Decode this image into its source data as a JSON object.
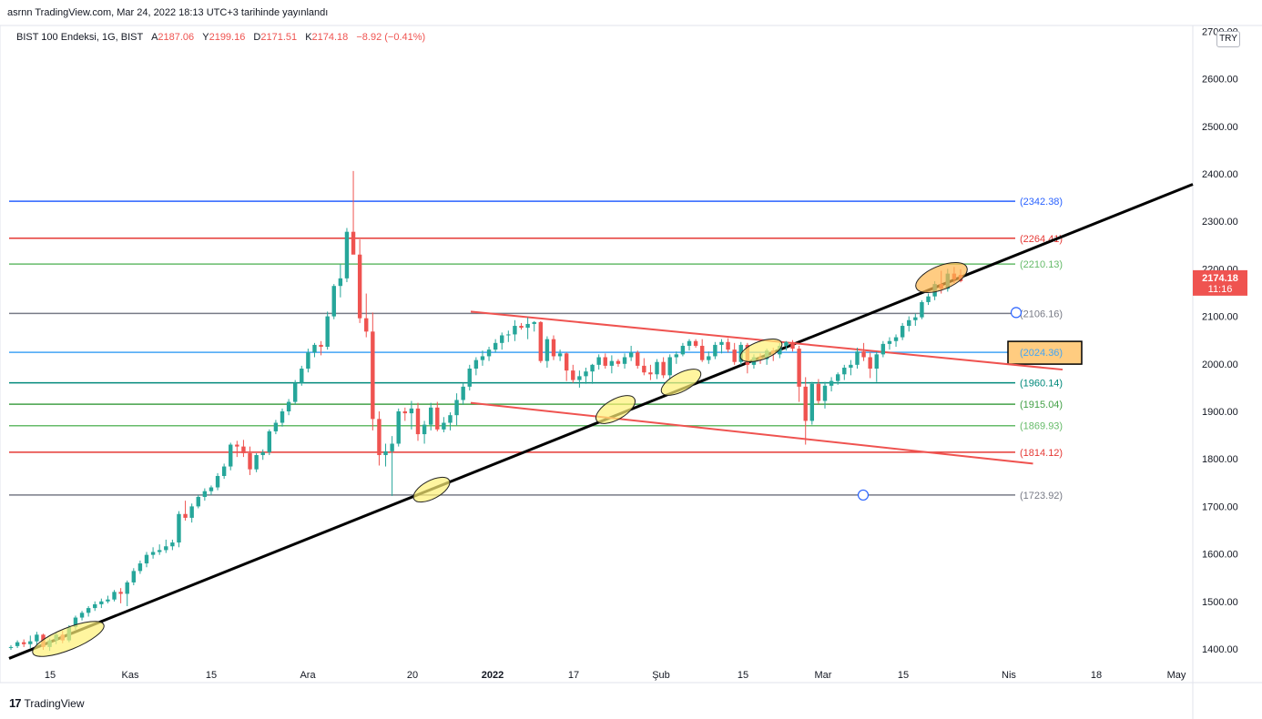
{
  "header": {
    "published": "asrnn TradingView.com, Mar 24, 2022 18:13 UTC+3 tarihinde yayınlandı",
    "symbol": "BIST 100 Endeksi, 1G, BIST",
    "o_label": "A",
    "o_value": "2187.06",
    "h_label": "Y",
    "h_value": "2199.16",
    "l_label": "D",
    "l_value": "2171.51",
    "c_label": "K",
    "c_value": "2174.18",
    "change": "−8.92 (−0.41%)"
  },
  "currency": "TRY",
  "brand": "TradingView",
  "price_tag": {
    "price": "2174.18",
    "time": "11:16",
    "color": "#ef5350"
  },
  "chart_data": {
    "type": "candlestick",
    "y_ticks": [
      "1400.00",
      "1500.00",
      "1600.00",
      "1700.00",
      "1800.00",
      "1900.00",
      "2000.00",
      "2100.00",
      "2200.00",
      "2300.00",
      "2400.00",
      "2500.00",
      "2600.00",
      "2700.00"
    ],
    "ylim": [
      1365,
      2710
    ],
    "x_ticks": [
      "15",
      "Kas",
      "15",
      "Ara",
      "20",
      "2022",
      "17",
      "Şub",
      "15",
      "Mar",
      "15",
      "Nis",
      "18",
      "May"
    ],
    "colors": {
      "up": "#26a69a",
      "down": "#ef5350"
    },
    "candles_ohlc": [
      [
        1402,
        1408,
        1398,
        1404
      ],
      [
        1406,
        1418,
        1402,
        1414
      ],
      [
        1414,
        1420,
        1404,
        1410
      ],
      [
        1410,
        1428,
        1402,
        1416
      ],
      [
        1416,
        1436,
        1408,
        1430
      ],
      [
        1430,
        1432,
        1398,
        1404
      ],
      [
        1404,
        1422,
        1396,
        1418
      ],
      [
        1418,
        1434,
        1410,
        1430
      ],
      [
        1430,
        1438,
        1412,
        1418
      ],
      [
        1418,
        1450,
        1414,
        1446
      ],
      [
        1446,
        1470,
        1440,
        1466
      ],
      [
        1466,
        1480,
        1460,
        1476
      ],
      [
        1476,
        1490,
        1468,
        1486
      ],
      [
        1486,
        1500,
        1480,
        1494
      ],
      [
        1494,
        1506,
        1486,
        1500
      ],
      [
        1500,
        1512,
        1496,
        1504
      ],
      [
        1504,
        1524,
        1500,
        1520
      ],
      [
        1520,
        1528,
        1496,
        1516
      ],
      [
        1516,
        1544,
        1490,
        1540
      ],
      [
        1540,
        1570,
        1534,
        1564
      ],
      [
        1564,
        1586,
        1558,
        1580
      ],
      [
        1580,
        1604,
        1572,
        1598
      ],
      [
        1598,
        1614,
        1590,
        1604
      ],
      [
        1604,
        1620,
        1598,
        1608
      ],
      [
        1608,
        1630,
        1602,
        1616
      ],
      [
        1616,
        1630,
        1608,
        1624
      ],
      [
        1624,
        1690,
        1614,
        1684
      ],
      [
        1684,
        1712,
        1670,
        1676
      ],
      [
        1676,
        1706,
        1666,
        1700
      ],
      [
        1700,
        1724,
        1696,
        1720
      ],
      [
        1720,
        1738,
        1712,
        1732
      ],
      [
        1732,
        1744,
        1724,
        1740
      ],
      [
        1740,
        1770,
        1734,
        1764
      ],
      [
        1764,
        1790,
        1758,
        1784
      ],
      [
        1784,
        1834,
        1776,
        1830
      ],
      [
        1830,
        1838,
        1804,
        1826
      ],
      [
        1826,
        1840,
        1804,
        1812
      ],
      [
        1812,
        1826,
        1766,
        1778
      ],
      [
        1778,
        1812,
        1772,
        1808
      ],
      [
        1808,
        1820,
        1798,
        1814
      ],
      [
        1814,
        1862,
        1808,
        1858
      ],
      [
        1858,
        1882,
        1852,
        1876
      ],
      [
        1876,
        1906,
        1868,
        1900
      ],
      [
        1900,
        1926,
        1892,
        1920
      ],
      [
        1920,
        1966,
        1914,
        1960
      ],
      [
        1960,
        1996,
        1954,
        1990
      ],
      [
        1990,
        2032,
        1982,
        2024
      ],
      [
        2024,
        2044,
        2014,
        2040
      ],
      [
        2040,
        2048,
        2018,
        2036
      ],
      [
        2036,
        2110,
        2030,
        2100
      ],
      [
        2100,
        2168,
        2094,
        2164
      ],
      [
        2164,
        2210,
        2140,
        2180
      ],
      [
        2180,
        2286,
        2172,
        2278
      ],
      [
        2278,
        2406,
        2248,
        2230
      ],
      [
        2230,
        2262,
        2086,
        2096
      ],
      [
        2096,
        2148,
        2056,
        2068
      ],
      [
        2068,
        2108,
        1860,
        1884
      ],
      [
        1884,
        1900,
        1786,
        1808
      ],
      [
        1808,
        1832,
        1784,
        1816
      ],
      [
        1816,
        1848,
        1722,
        1832
      ],
      [
        1832,
        1906,
        1826,
        1900
      ],
      [
        1900,
        1908,
        1880,
        1896
      ],
      [
        1896,
        1922,
        1862,
        1906
      ],
      [
        1906,
        1918,
        1838,
        1852
      ],
      [
        1852,
        1880,
        1832,
        1872
      ],
      [
        1872,
        1918,
        1860,
        1908
      ],
      [
        1908,
        1920,
        1858,
        1862
      ],
      [
        1862,
        1888,
        1856,
        1876
      ],
      [
        1876,
        1898,
        1860,
        1892
      ],
      [
        1892,
        1938,
        1870,
        1924
      ],
      [
        1924,
        1960,
        1914,
        1952
      ],
      [
        1952,
        1998,
        1944,
        1990
      ],
      [
        1990,
        2014,
        1976,
        2008
      ],
      [
        2008,
        2028,
        1996,
        2016
      ],
      [
        2016,
        2036,
        2006,
        2030
      ],
      [
        2030,
        2052,
        2024,
        2044
      ],
      [
        2044,
        2066,
        2030,
        2060
      ],
      [
        2060,
        2070,
        2046,
        2062
      ],
      [
        2062,
        2092,
        2048,
        2080
      ],
      [
        2080,
        2086,
        2072,
        2076
      ],
      [
        2076,
        2098,
        2052,
        2084
      ],
      [
        2084,
        2090,
        2068,
        2088
      ],
      [
        2088,
        2090,
        2002,
        2006
      ],
      [
        2006,
        2058,
        1992,
        2052
      ],
      [
        2052,
        2060,
        2008,
        2016
      ],
      [
        2016,
        2030,
        2006,
        2022
      ],
      [
        2022,
        2024,
        1964,
        1986
      ],
      [
        1986,
        1998,
        1960,
        1966
      ],
      [
        1966,
        1986,
        1950,
        1974
      ],
      [
        1974,
        1992,
        1958,
        1984
      ],
      [
        1984,
        2000,
        1958,
        1998
      ],
      [
        1998,
        2020,
        1988,
        2014
      ],
      [
        2014,
        2022,
        1990,
        1996
      ],
      [
        1996,
        2018,
        1980,
        2006
      ],
      [
        2006,
        2010,
        1994,
        2000
      ],
      [
        2000,
        2022,
        1990,
        2014
      ],
      [
        2014,
        2038,
        2006,
        2024
      ],
      [
        2024,
        2028,
        1990,
        1996
      ],
      [
        1996,
        2012,
        1976,
        1982
      ],
      [
        1982,
        1998,
        1966,
        1978
      ],
      [
        1978,
        2010,
        1968,
        2004
      ],
      [
        2004,
        2014,
        1970,
        1976
      ],
      [
        1976,
        2020,
        1966,
        2014
      ],
      [
        2014,
        2026,
        2000,
        2020
      ],
      [
        2020,
        2044,
        2016,
        2038
      ],
      [
        2038,
        2052,
        2028,
        2048
      ],
      [
        2048,
        2052,
        2034,
        2038
      ],
      [
        2038,
        2052,
        2004,
        2008
      ],
      [
        2008,
        2026,
        2000,
        2016
      ],
      [
        2016,
        2046,
        2010,
        2040
      ],
      [
        2040,
        2052,
        2022,
        2046
      ],
      [
        2046,
        2054,
        2024,
        2030
      ],
      [
        2030,
        2044,
        1998,
        2004
      ],
      [
        2004,
        2046,
        1998,
        2040
      ],
      [
        2040,
        2044,
        1980,
        1998
      ],
      [
        1998,
        2020,
        1990,
        2014
      ],
      [
        2014,
        2022,
        2000,
        2010
      ],
      [
        2010,
        2032,
        1998,
        2028
      ],
      [
        2028,
        2034,
        2006,
        2020
      ],
      [
        2020,
        2044,
        2012,
        2038
      ],
      [
        2038,
        2048,
        2028,
        2046
      ],
      [
        2046,
        2050,
        2026,
        2032
      ],
      [
        2032,
        2038,
        1920,
        1952
      ],
      [
        1952,
        1972,
        1830,
        1880
      ],
      [
        1880,
        1962,
        1872,
        1958
      ],
      [
        1958,
        1968,
        1916,
        1922
      ],
      [
        1922,
        1962,
        1906,
        1954
      ],
      [
        1954,
        1972,
        1942,
        1964
      ],
      [
        1964,
        1982,
        1956,
        1978
      ],
      [
        1978,
        1998,
        1966,
        1992
      ],
      [
        1992,
        2008,
        1976,
        1998
      ],
      [
        1998,
        2034,
        1990,
        2026
      ],
      [
        2026,
        2044,
        2006,
        2014
      ],
      [
        2014,
        2024,
        1970,
        1990
      ],
      [
        1990,
        2026,
        1962,
        2020
      ],
      [
        2020,
        2048,
        2014,
        2042
      ],
      [
        2042,
        2056,
        2030,
        2048
      ],
      [
        2048,
        2062,
        2036,
        2056
      ],
      [
        2056,
        2086,
        2050,
        2080
      ],
      [
        2080,
        2100,
        2068,
        2092
      ],
      [
        2092,
        2106,
        2080,
        2098
      ],
      [
        2098,
        2134,
        2094,
        2130
      ],
      [
        2130,
        2148,
        2124,
        2142
      ],
      [
        2142,
        2174,
        2134,
        2168
      ],
      [
        2168,
        2196,
        2148,
        2158
      ],
      [
        2158,
        2200,
        2152,
        2190
      ],
      [
        2190,
        2204,
        2170,
        2178
      ],
      [
        2187.06,
        2199.16,
        2171.51,
        2174.18
      ]
    ],
    "horizontal_levels": [
      {
        "value": 2342.38,
        "label": "(2342.38)",
        "color": "#2962ff"
      },
      {
        "value": 2264.41,
        "label": "(2264.41)",
        "color": "#e53935"
      },
      {
        "value": 2210.13,
        "label": "(2210.13)",
        "color": "#66bb6a"
      },
      {
        "value": 2106.16,
        "label": "(2106.16)",
        "color": "#787b86"
      },
      {
        "value": 2024.36,
        "label": "(2024.36)",
        "color": "#42a5f5"
      },
      {
        "value": 1960.14,
        "label": "(1960.14)",
        "color": "#00897b"
      },
      {
        "value": 1915.04,
        "label": "(1915.04)",
        "color": "#43a047"
      },
      {
        "value": 1869.93,
        "label": "(1869.93)",
        "color": "#66bb6a"
      },
      {
        "value": 1814.12,
        "label": "(1814.12)",
        "color": "#e53935"
      },
      {
        "value": 1723.92,
        "label": "(1723.92)",
        "color": "#787b86"
      }
    ],
    "trendlines": [
      {
        "from": [
          0,
          1380
        ],
        "to": [
          1.0,
          2378
        ],
        "color": "#000000",
        "name": "ascending-support"
      },
      {
        "from": [
          0.39,
          2110
        ],
        "to": [
          0.89,
          1988
        ],
        "color": "#ef5350",
        "name": "upper-channel"
      },
      {
        "from": [
          0.39,
          1918
        ],
        "to": [
          0.865,
          1790
        ],
        "color": "#ef5350",
        "name": "lower-channel"
      }
    ],
    "grid": false
  }
}
